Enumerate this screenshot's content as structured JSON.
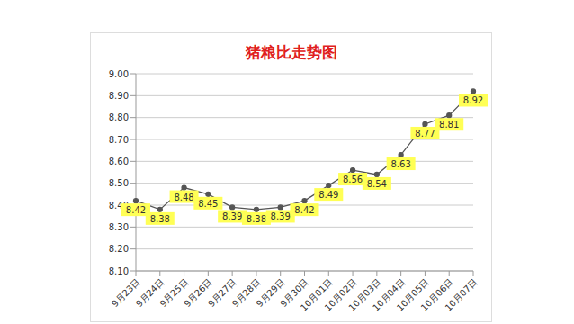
{
  "chart_data": {
    "type": "line",
    "title": "猪粮比走势图",
    "categories": [
      "9月23日",
      "9月24日",
      "9月25日",
      "9月26日",
      "9月27日",
      "9月28日",
      "9月29日",
      "9月30日",
      "10月01日",
      "10月02日",
      "10月03日",
      "10月04日",
      "10月05日",
      "10月06日",
      "10月07日"
    ],
    "values": [
      8.42,
      8.38,
      8.48,
      8.45,
      8.39,
      8.38,
      8.39,
      8.42,
      8.49,
      8.56,
      8.54,
      8.63,
      8.77,
      8.81,
      8.92
    ],
    "color": "#555555",
    "marker": "circle",
    "line_style": "solid",
    "data_labels": true,
    "grid": true,
    "ylim": [
      8.1,
      9
    ],
    "yticks": [
      {
        "value": 8.1,
        "label": "8.10"
      },
      {
        "value": 8.2,
        "label": "8.20"
      },
      {
        "value": 8.3,
        "label": "8.30"
      },
      {
        "value": 8.4,
        "label": "8.40"
      },
      {
        "value": 8.5,
        "label": "8.50"
      },
      {
        "value": 8.6,
        "label": "8.60"
      },
      {
        "value": 8.7,
        "label": "8.70"
      },
      {
        "value": 8.8,
        "label": "8.80"
      },
      {
        "value": 8.9,
        "label": "8.90"
      },
      {
        "value": 9,
        "label": "9.00"
      }
    ]
  }
}
